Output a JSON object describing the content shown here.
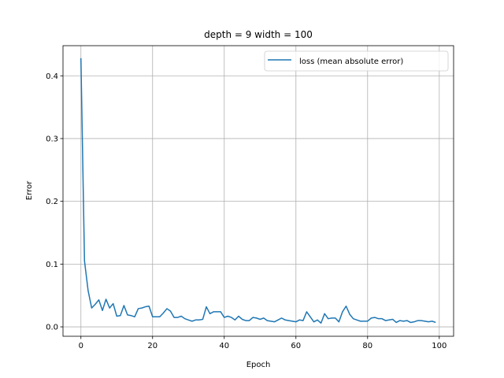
{
  "chart_data": {
    "type": "line",
    "title": "depth = 9 width = 100",
    "xlabel": "Epoch",
    "ylabel": "Error",
    "xlim": [
      -5,
      104
    ],
    "ylim": [
      -0.015,
      0.448
    ],
    "xticks": [
      0,
      20,
      40,
      60,
      80,
      100
    ],
    "yticks": [
      0.0,
      0.1,
      0.2,
      0.3,
      0.4
    ],
    "xtick_labels": [
      "0",
      "20",
      "40",
      "60",
      "80",
      "100"
    ],
    "ytick_labels": [
      "0.0",
      "0.1",
      "0.2",
      "0.3",
      "0.4"
    ],
    "grid": true,
    "legend_position": "top-right",
    "series": [
      {
        "name": "loss (mean absolute error)",
        "color": "#1f77b4",
        "x": [
          0,
          1,
          2,
          3,
          4,
          5,
          6,
          7,
          8,
          9,
          10,
          11,
          12,
          13,
          14,
          15,
          16,
          17,
          18,
          19,
          20,
          21,
          22,
          23,
          24,
          25,
          26,
          27,
          28,
          29,
          30,
          31,
          32,
          33,
          34,
          35,
          36,
          37,
          38,
          39,
          40,
          41,
          42,
          43,
          44,
          45,
          46,
          47,
          48,
          49,
          50,
          51,
          52,
          53,
          54,
          55,
          56,
          57,
          58,
          59,
          60,
          61,
          62,
          63,
          64,
          65,
          66,
          67,
          68,
          69,
          70,
          71,
          72,
          73,
          74,
          75,
          76,
          77,
          78,
          79,
          80,
          81,
          82,
          83,
          84,
          85,
          86,
          87,
          88,
          89,
          90,
          91,
          92,
          93,
          94,
          95,
          96,
          97,
          98,
          99
        ],
        "values": [
          0.428,
          0.105,
          0.058,
          0.03,
          0.036,
          0.043,
          0.026,
          0.044,
          0.03,
          0.037,
          0.017,
          0.018,
          0.034,
          0.019,
          0.018,
          0.016,
          0.029,
          0.03,
          0.032,
          0.033,
          0.016,
          0.016,
          0.016,
          0.022,
          0.029,
          0.025,
          0.015,
          0.015,
          0.017,
          0.013,
          0.011,
          0.009,
          0.011,
          0.011,
          0.012,
          0.032,
          0.021,
          0.024,
          0.024,
          0.024,
          0.015,
          0.017,
          0.015,
          0.011,
          0.017,
          0.012,
          0.01,
          0.01,
          0.015,
          0.014,
          0.012,
          0.014,
          0.01,
          0.009,
          0.008,
          0.011,
          0.014,
          0.011,
          0.01,
          0.009,
          0.008,
          0.011,
          0.01,
          0.024,
          0.016,
          0.008,
          0.011,
          0.006,
          0.021,
          0.013,
          0.014,
          0.014,
          0.008,
          0.024,
          0.033,
          0.02,
          0.013,
          0.011,
          0.009,
          0.009,
          0.009,
          0.014,
          0.015,
          0.013,
          0.013,
          0.01,
          0.011,
          0.012,
          0.007,
          0.01,
          0.009,
          0.01,
          0.007,
          0.008,
          0.01,
          0.01,
          0.009,
          0.008,
          0.009,
          0.007
        ]
      }
    ]
  }
}
